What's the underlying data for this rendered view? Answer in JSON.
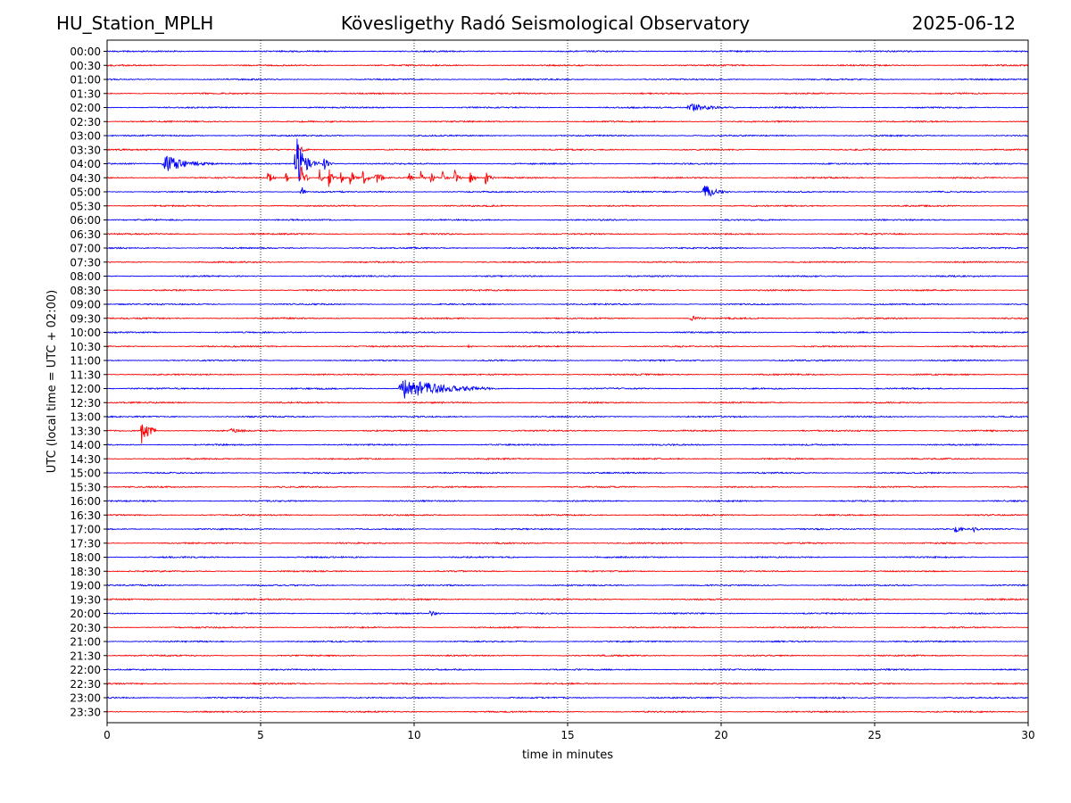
{
  "header": {
    "station": "HU_Station_MPLH",
    "observatory": "Kövesligethy Radó Seismological Observatory",
    "date": "2025-06-12"
  },
  "chart_data": {
    "type": "line",
    "title": "Kövesligethy Radó Seismological Observatory",
    "xlabel": "time in minutes",
    "ylabel": "UTC (local time = UTC + 02:00)",
    "xlim": [
      0,
      30
    ],
    "x_ticks": [
      0,
      5,
      10,
      15,
      20,
      25,
      30
    ],
    "grid": "vertical dotted at x ticks",
    "row_labels": [
      "00:00",
      "00:30",
      "01:00",
      "01:30",
      "02:00",
      "02:30",
      "03:00",
      "03:30",
      "04:00",
      "04:30",
      "05:00",
      "05:30",
      "06:00",
      "06:30",
      "07:00",
      "07:30",
      "08:00",
      "08:30",
      "09:00",
      "09:30",
      "10:00",
      "10:30",
      "11:00",
      "11:30",
      "12:00",
      "12:30",
      "13:00",
      "13:30",
      "14:00",
      "14:30",
      "15:00",
      "15:30",
      "16:00",
      "16:30",
      "17:00",
      "17:30",
      "18:00",
      "18:30",
      "19:00",
      "19:30",
      "20:00",
      "20:30",
      "21:00",
      "21:30",
      "22:00",
      "22:30",
      "23:00",
      "23:30"
    ],
    "colors": [
      "#0000ff",
      "#ff0000"
    ],
    "events": [
      {
        "row": "02:00",
        "start": 18.9,
        "end": 20.5,
        "amp": 0.45
      },
      {
        "row": "03:30",
        "start": 6.2,
        "end": 6.6,
        "amp": 0.4
      },
      {
        "row": "04:00",
        "start": 1.8,
        "end": 3.6,
        "amp": 0.8
      },
      {
        "row": "04:00",
        "start": 6.1,
        "end": 6.9,
        "amp": 2.6
      },
      {
        "row": "04:00",
        "start": 7.0,
        "end": 7.4,
        "amp": 0.8
      },
      {
        "row": "04:30",
        "start": 5.2,
        "end": 5.5,
        "amp": 0.9
      },
      {
        "row": "04:30",
        "start": 5.8,
        "end": 6.0,
        "amp": 0.7
      },
      {
        "row": "04:30",
        "start": 6.3,
        "end": 6.6,
        "amp": 1.6
      },
      {
        "row": "04:30",
        "start": 6.9,
        "end": 7.1,
        "amp": 0.8
      },
      {
        "row": "04:30",
        "start": 7.2,
        "end": 7.5,
        "amp": 0.9
      },
      {
        "row": "04:30",
        "start": 7.6,
        "end": 7.8,
        "amp": 0.7
      },
      {
        "row": "04:30",
        "start": 7.9,
        "end": 8.2,
        "amp": 0.9
      },
      {
        "row": "04:30",
        "start": 8.3,
        "end": 8.6,
        "amp": 1.0
      },
      {
        "row": "04:30",
        "start": 8.7,
        "end": 9.2,
        "amp": 0.8
      },
      {
        "row": "04:30",
        "start": 9.8,
        "end": 10.0,
        "amp": 0.8
      },
      {
        "row": "04:30",
        "start": 10.2,
        "end": 10.4,
        "amp": 0.7
      },
      {
        "row": "04:30",
        "start": 10.5,
        "end": 10.8,
        "amp": 0.9
      },
      {
        "row": "04:30",
        "start": 10.9,
        "end": 11.2,
        "amp": 0.8
      },
      {
        "row": "04:30",
        "start": 11.3,
        "end": 11.6,
        "amp": 0.8
      },
      {
        "row": "04:30",
        "start": 11.8,
        "end": 12.1,
        "amp": 0.8
      },
      {
        "row": "04:30",
        "start": 12.3,
        "end": 12.6,
        "amp": 0.8
      },
      {
        "row": "05:00",
        "start": 6.3,
        "end": 6.5,
        "amp": 0.8
      },
      {
        "row": "05:00",
        "start": 19.4,
        "end": 20.3,
        "amp": 0.7
      },
      {
        "row": "09:30",
        "start": 19.0,
        "end": 19.5,
        "amp": 0.25
      },
      {
        "row": "10:30",
        "start": 11.7,
        "end": 12.0,
        "amp": 0.2
      },
      {
        "row": "12:00",
        "start": 9.5,
        "end": 12.5,
        "amp": 1.1
      },
      {
        "row": "13:30",
        "start": 1.1,
        "end": 1.6,
        "amp": 1.9
      },
      {
        "row": "13:30",
        "start": 4.0,
        "end": 4.6,
        "amp": 0.2
      },
      {
        "row": "17:00",
        "start": 27.6,
        "end": 27.9,
        "amp": 0.35
      },
      {
        "row": "17:00",
        "start": 28.2,
        "end": 28.4,
        "amp": 0.45
      },
      {
        "row": "20:00",
        "start": 10.5,
        "end": 11.0,
        "amp": 0.25
      }
    ]
  }
}
